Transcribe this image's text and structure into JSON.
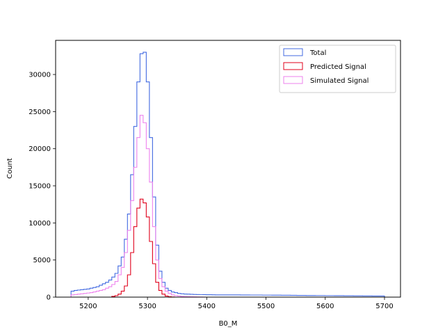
{
  "chart_data": {
    "type": "histogram",
    "xlabel": "B0_M",
    "ylabel": "Count",
    "xlim": [
      5145,
      5727
    ],
    "ylim": [
      0,
      34600
    ],
    "xticks": [
      5200,
      5300,
      5400,
      5500,
      5600,
      5700
    ],
    "yticks": [
      0,
      5000,
      10000,
      15000,
      20000,
      25000,
      30000
    ],
    "grid": false,
    "legend_position": "top-right",
    "bins": {
      "start": 5171,
      "end": 5700,
      "width": 5.29
    },
    "series": [
      {
        "name": "Total",
        "color": "#4169e1",
        "values": [
          800,
          900,
          950,
          1000,
          1050,
          1100,
          1200,
          1300,
          1400,
          1600,
          1800,
          2000,
          2300,
          2700,
          3200,
          4200,
          5400,
          7800,
          11200,
          16500,
          23000,
          29000,
          32800,
          33000,
          29000,
          21500,
          13500,
          7000,
          3500,
          2000,
          1200,
          900,
          700,
          600,
          500,
          450,
          420,
          400,
          380,
          360,
          350,
          340,
          330,
          320,
          320,
          310,
          300,
          300,
          300,
          300,
          300,
          300,
          300,
          300,
          290,
          290,
          290,
          280,
          280,
          280,
          280,
          270,
          270,
          270,
          260,
          260,
          260,
          250,
          250,
          250,
          240,
          240,
          230,
          230,
          230,
          220,
          220,
          220,
          210,
          210,
          210,
          200,
          200,
          200,
          190,
          190,
          190,
          180,
          180,
          180,
          170,
          170,
          170,
          160,
          160,
          160,
          150,
          150,
          150,
          150
        ]
      },
      {
        "name": "Predicted Signal",
        "color": "#e0001b",
        "values": [
          0,
          0,
          0,
          0,
          0,
          0,
          0,
          0,
          0,
          0,
          0,
          0,
          0,
          100,
          200,
          400,
          800,
          1500,
          3000,
          6000,
          9500,
          12000,
          13200,
          12700,
          10800,
          7500,
          4500,
          2000,
          900,
          400,
          150,
          50,
          20,
          0,
          0,
          0,
          0,
          0,
          0,
          0,
          0,
          0,
          0,
          0,
          0,
          0,
          0,
          0,
          0,
          0,
          0,
          0,
          0,
          0,
          0,
          0,
          0,
          0,
          0,
          0,
          0,
          0,
          0,
          0,
          0,
          0,
          0,
          0,
          0,
          0,
          0,
          0,
          0,
          0,
          0,
          0,
          0,
          0,
          0,
          0,
          0,
          0,
          0,
          0,
          0,
          0,
          0,
          0,
          0,
          0,
          0,
          0,
          0,
          0,
          0,
          0,
          0,
          0,
          0,
          0
        ]
      },
      {
        "name": "Simulated Signal",
        "color": "#ee82ee",
        "values": [
          300,
          350,
          400,
          450,
          500,
          550,
          600,
          700,
          800,
          900,
          1000,
          1200,
          1400,
          1700,
          2100,
          3000,
          4000,
          6000,
          9000,
          13000,
          17500,
          21500,
          24500,
          23500,
          20000,
          15500,
          9500,
          5000,
          2500,
          1400,
          800,
          500,
          300,
          200,
          150,
          100,
          80,
          60,
          50,
          40,
          30,
          20,
          10,
          0,
          0,
          0,
          0,
          0,
          0,
          0,
          0,
          0,
          0,
          0,
          0,
          0,
          0,
          0,
          0,
          0,
          0,
          0,
          0,
          0,
          0,
          0,
          0,
          0,
          0,
          0,
          0,
          0,
          0,
          0,
          0,
          0,
          0,
          0,
          0,
          0,
          0,
          0,
          0,
          0,
          0,
          0,
          0,
          0,
          0,
          0,
          0,
          0,
          0,
          0,
          0,
          0,
          0,
          0,
          0,
          0
        ]
      }
    ]
  }
}
